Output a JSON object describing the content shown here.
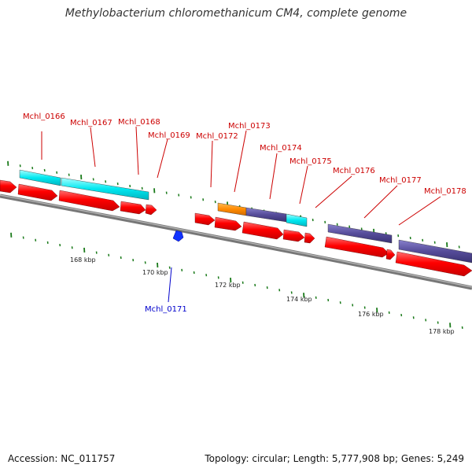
{
  "title": "Methylobacterium chloromethanicum CM4, complete genome",
  "footer": {
    "accession": "Accession: NC_011757",
    "summary": "Topology: circular; Length: 5,777,908 bp; Genes: 5,249"
  },
  "colors": {
    "cds_forward": "#ff0000",
    "cyan_feature": "#00e0e8",
    "purple_feature": "#554c99",
    "orange_feature": "#ff8800",
    "tick": "#1a7a1a",
    "backbone": "#888888",
    "blue_gene": "#0022dd"
  },
  "genes": [
    {
      "id": "Mchl_0166",
      "color": "red"
    },
    {
      "id": "Mchl_0167",
      "color": "red"
    },
    {
      "id": "Mchl_0168",
      "color": "red"
    },
    {
      "id": "Mchl_0169",
      "color": "red"
    },
    {
      "id": "Mchl_0172",
      "color": "red"
    },
    {
      "id": "Mchl_0173",
      "color": "red"
    },
    {
      "id": "Mchl_0174",
      "color": "red"
    },
    {
      "id": "Mchl_0175",
      "color": "red"
    },
    {
      "id": "Mchl_0176",
      "color": "red"
    },
    {
      "id": "Mchl_0177",
      "color": "red"
    },
    {
      "id": "Mchl_0178",
      "color": "red"
    },
    {
      "id": "Mchl_0171",
      "color": "blue"
    }
  ],
  "position_labels": [
    "168 kbp",
    "170 kbp",
    "172 kbp",
    "174 kbp",
    "176 kbp",
    "178 kbp"
  ]
}
